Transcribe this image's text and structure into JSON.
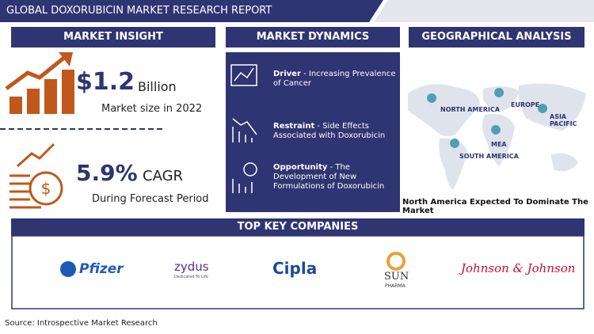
{
  "header": {
    "title": "GLOBAL DOXORUBICIN MARKET RESEARCH REPORT"
  },
  "market_insight": {
    "heading": "MARKET INSIGHT",
    "market_size": "$1.2",
    "unit": "Billion",
    "size_caption": "Market size in 2022",
    "cagr": "5.9%",
    "cagr_label": "CAGR",
    "cagr_caption": "During Forecast Period"
  },
  "market_dynamics": {
    "heading": "MARKET DYNAMICS",
    "items": [
      {
        "label": "Driver",
        "text": "- Increasing Prevalence of Cancer"
      },
      {
        "label": "Restraint",
        "text": "- Side Effects Associated with Doxorubicin"
      },
      {
        "label": "Opportunity",
        "text": "- The Development of New Formulations of Doxorubicin"
      }
    ]
  },
  "geographical_analysis": {
    "heading": "GEOGRAPHICAL ANALYSIS",
    "regions": [
      "NORTH AMERICA",
      "EUROPE",
      "ASIA PACIFIC",
      "MEA",
      "SOUTH AMERICA"
    ],
    "caption": "North America Expected To Dominate The Market"
  },
  "companies": {
    "heading": "TOP KEY COMPANIES",
    "logos": [
      "Pfizer",
      "zydus",
      "Dedicated To Life",
      "Cipla",
      "SUN",
      "PHARMA",
      "Johnson & Johnson"
    ]
  },
  "footer": {
    "source": "Source: Introspective Market Research"
  }
}
